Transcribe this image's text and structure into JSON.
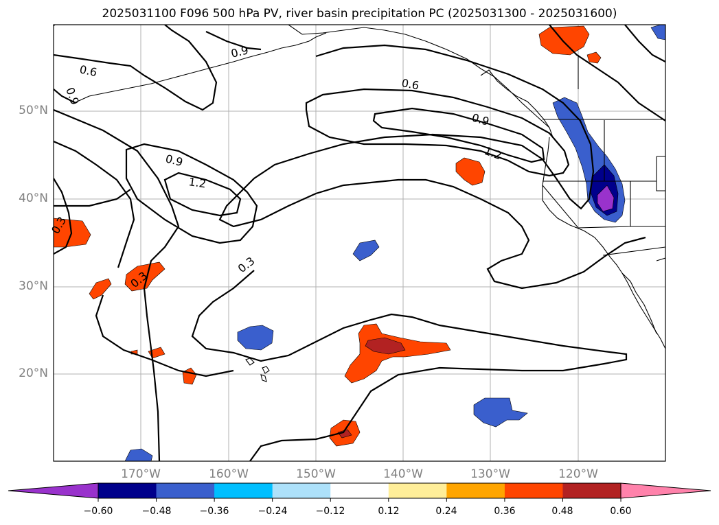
{
  "title": "2025031100 F096 500 hPa PV, river basin precipitation PC (2025031300 - 2025031600)",
  "map": {
    "lat_ticks": [
      "50°N",
      "40°N",
      "30°N",
      "20°N"
    ],
    "lon_ticks": [
      "170°W",
      "160°W",
      "150°W",
      "140°W",
      "130°W",
      "120°W"
    ],
    "contour_labels": [
      "0.6",
      "0.9",
      "0.6",
      "0.9",
      "1.2",
      "0.9",
      "1.2",
      "0.3",
      "0.3",
      "0.3",
      "0.9"
    ]
  },
  "colorbar": {
    "ticks": [
      "−0.60",
      "−0.48",
      "−0.36",
      "−0.24",
      "−0.12",
      "0.12",
      "0.24",
      "0.36",
      "0.48",
      "0.60"
    ],
    "colors": [
      "#9932CC",
      "#00008B",
      "#3A5FCD",
      "#00BFFF",
      "#ADE1FA",
      "#FFFFFF",
      "#FFEE99",
      "#FFA500",
      "#FF4500",
      "#B22222",
      "#FF82AB"
    ]
  }
}
